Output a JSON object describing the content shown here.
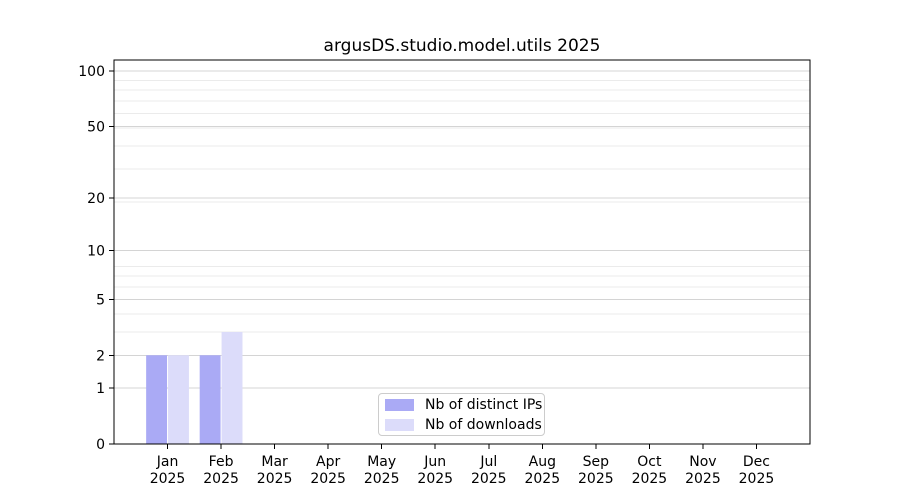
{
  "chart_data": {
    "type": "bar",
    "title": "argusDS.studio.model.utils 2025",
    "categories": [
      "Jan",
      "Feb",
      "Mar",
      "Apr",
      "May",
      "Jun",
      "Jul",
      "Aug",
      "Sep",
      "Oct",
      "Nov",
      "Dec"
    ],
    "year": "2025",
    "series": [
      {
        "name": "Nb of distinct IPs",
        "color": "#aaaaf5",
        "values": [
          2,
          2,
          0,
          0,
          0,
          0,
          0,
          0,
          0,
          0,
          0,
          0
        ]
      },
      {
        "name": "Nb of downloads",
        "color": "#dcdcfa",
        "values": [
          2,
          3,
          0,
          0,
          0,
          0,
          0,
          0,
          0,
          0,
          0,
          0
        ]
      }
    ],
    "yscale": "log1p",
    "yticks": [
      0,
      1,
      2,
      5,
      10,
      20,
      50,
      100
    ],
    "ylim": [
      0,
      115
    ],
    "grid": true,
    "legend_position": "lower center",
    "colors": {
      "grid_major": "#d4d4d4",
      "grid_minor": "#ebebeb",
      "axis": "#000000"
    }
  }
}
